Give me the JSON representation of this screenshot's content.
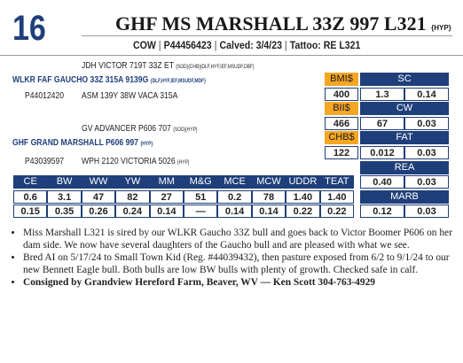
{
  "lot": "16",
  "header": {
    "title": "GHF MS MARSHALL 33Z 997 L321",
    "title_suffix": "{HYP}",
    "sex": "COW",
    "separator": "|",
    "registration": "P44456423",
    "calved": "Calved: 3/4/23",
    "tattoo": "Tattoo: RE L321"
  },
  "pedigree": {
    "sire_sire": {
      "name": "JDH VICTOR 719T 33Z ET",
      "codes": "{SOD}{CHB}{DLF,HYF,IEF,MSUDF,DBF}"
    },
    "sire": {
      "name": "WLKR FAF GAUCHO 33Z 315A 9139G",
      "codes": "{DLF,HYF,IEF,MSUDF,MDF}"
    },
    "sire_registration": "P44012420",
    "sire_dam": {
      "name": "ASM 139Y 38W VACA 315A"
    },
    "dam_sire": {
      "name": "GV ADVANCER P606 707",
      "codes": "{SOD}{HYP}"
    },
    "dam": {
      "name": "GHF GRAND MARSHALL P606 997",
      "codes": "{HYP}"
    },
    "dam_registration": "P43039597",
    "dam_dam": {
      "name": "WPH 2120 VICTORIA 5026",
      "codes": "{HYP}"
    }
  },
  "indexes": [
    {
      "label": "BMI$",
      "value": "400"
    },
    {
      "label": "BII$",
      "value": "466"
    },
    {
      "label": "CHB$",
      "value": "122"
    }
  ],
  "traits": [
    {
      "label": "SC",
      "epd": "1.3",
      "accuracy": "0.14"
    },
    {
      "label": "CW",
      "epd": "67",
      "accuracy": "0.03"
    },
    {
      "label": "FAT",
      "epd": "0.012",
      "accuracy": "0.03"
    },
    {
      "label": "REA",
      "epd": "0.40",
      "accuracy": "0.03"
    },
    {
      "label": "MARB",
      "epd": "0.12",
      "accuracy": "0.03"
    }
  ],
  "epd_table": {
    "headers": [
      "CE",
      "BW",
      "WW",
      "YW",
      "MM",
      "M&G",
      "MCE",
      "MCW",
      "UDDR",
      "TEAT"
    ],
    "values": [
      "0.6",
      "3.1",
      "47",
      "82",
      "27",
      "51",
      "0.2",
      "78",
      "1.40",
      "1.40"
    ],
    "accuracies": [
      "0.15",
      "0.35",
      "0.26",
      "0.24",
      "0.14",
      "—",
      "0.14",
      "0.14",
      "0.22",
      "0.22"
    ]
  },
  "notes": [
    "Miss Marshall L321 is sired by our WLKR Gaucho 33Z bull and goes back to Victor Boomer P606 on her dam side. We now have several daughters of the Gaucho bull and are pleased with what we see.",
    "Bred AI on 5/17/24 to Small Town Kid (Reg. #44039432), then pasture exposed from 6/2 to 9/1/24 to our new Bennett Eagle bull. Both bulls are low BW bulls with plenty of growth. Checked safe in calf.",
    "Consigned by Grandview Hereford Farm, Beaver, WV — Ken Scott 304-763-4929"
  ]
}
